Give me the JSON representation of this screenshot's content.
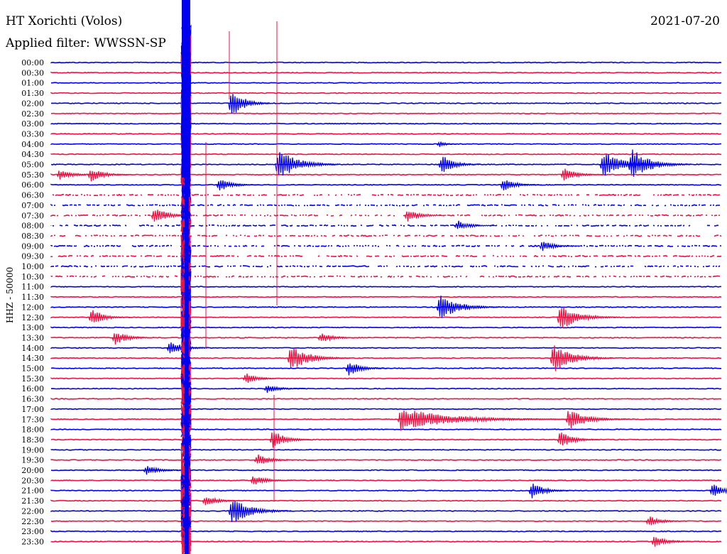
{
  "header": {
    "station": "HT Xorichti (Volos)",
    "filter": "Applied filter: WWSSN-SP",
    "date": "2021-07-20",
    "channel": "HHZ - 50000"
  },
  "colors": {
    "trace_a": "#0000ee",
    "trace_b": "#ee1144",
    "background": "#ffffff"
  },
  "time_labels": [
    "00:00",
    "00:30",
    "01:00",
    "01:30",
    "02:00",
    "02:30",
    "03:00",
    "03:30",
    "04:00",
    "04:30",
    "05:00",
    "05:30",
    "06:00",
    "06:30",
    "07:00",
    "07:30",
    "08:00",
    "08:30",
    "09:00",
    "09:30",
    "10:00",
    "10:30",
    "11:00",
    "11:30",
    "12:00",
    "12:30",
    "13:00",
    "13:30",
    "14:00",
    "14:30",
    "15:00",
    "15:30",
    "16:00",
    "16:30",
    "17:00",
    "17:30",
    "18:00",
    "18:30",
    "19:00",
    "19:30",
    "20:00",
    "20:30",
    "21:00",
    "21:30",
    "22:00",
    "22:30",
    "23:00",
    "23:30"
  ]
}
